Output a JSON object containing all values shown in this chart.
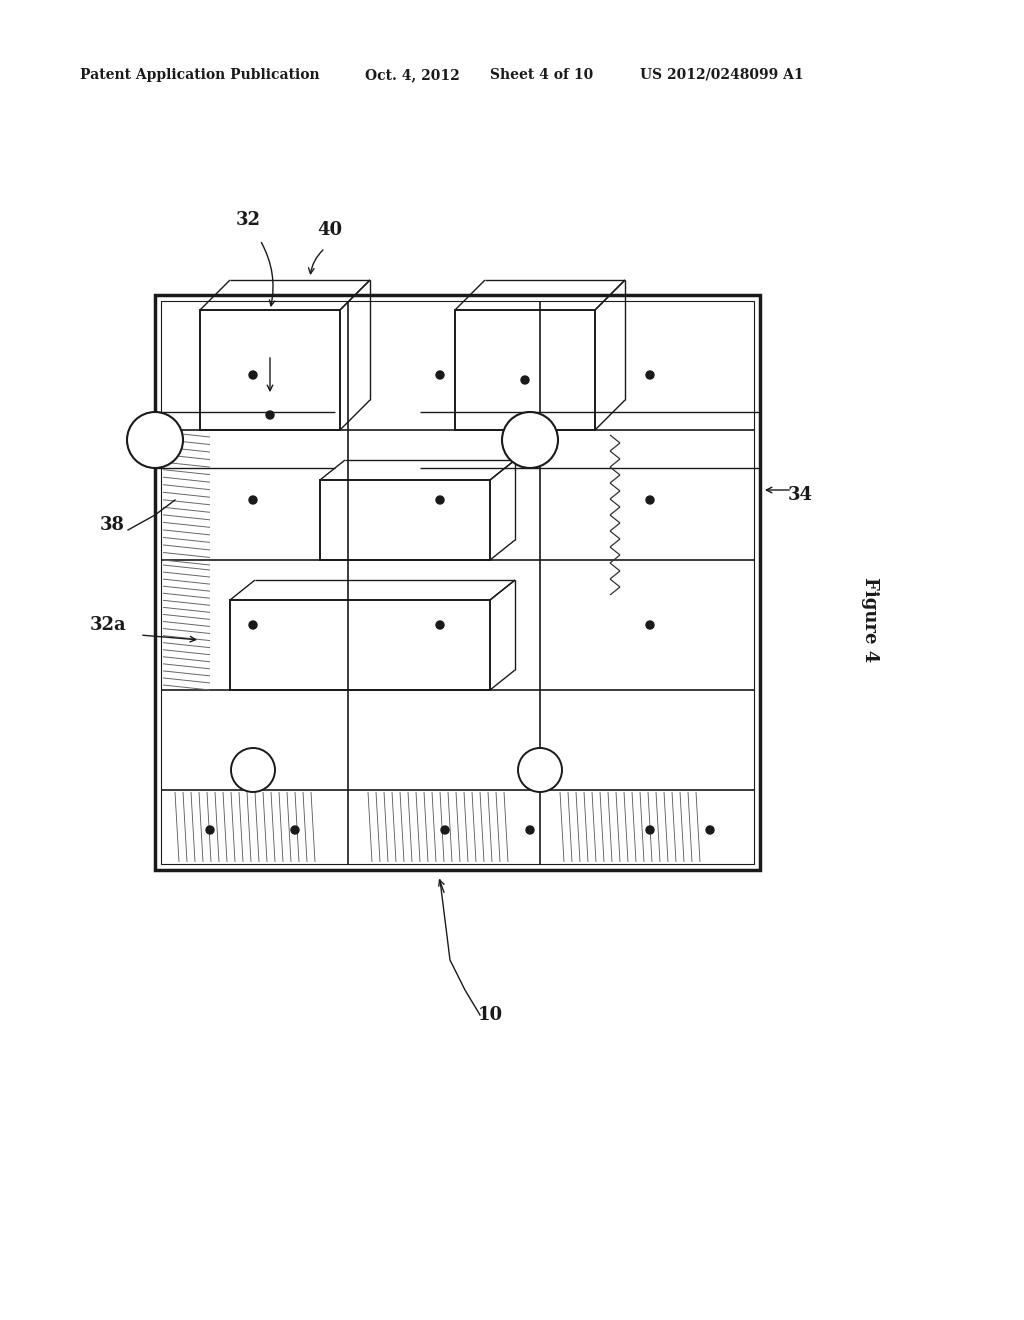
{
  "background_color": "#ffffff",
  "line_color": "#1a1a1a",
  "header_text": "Patent Application Publication",
  "header_date": "Oct. 4, 2012",
  "header_sheet": "Sheet 4 of 10",
  "header_patent": "US 2012/0248099 A1",
  "figure_label": "Figure 4"
}
